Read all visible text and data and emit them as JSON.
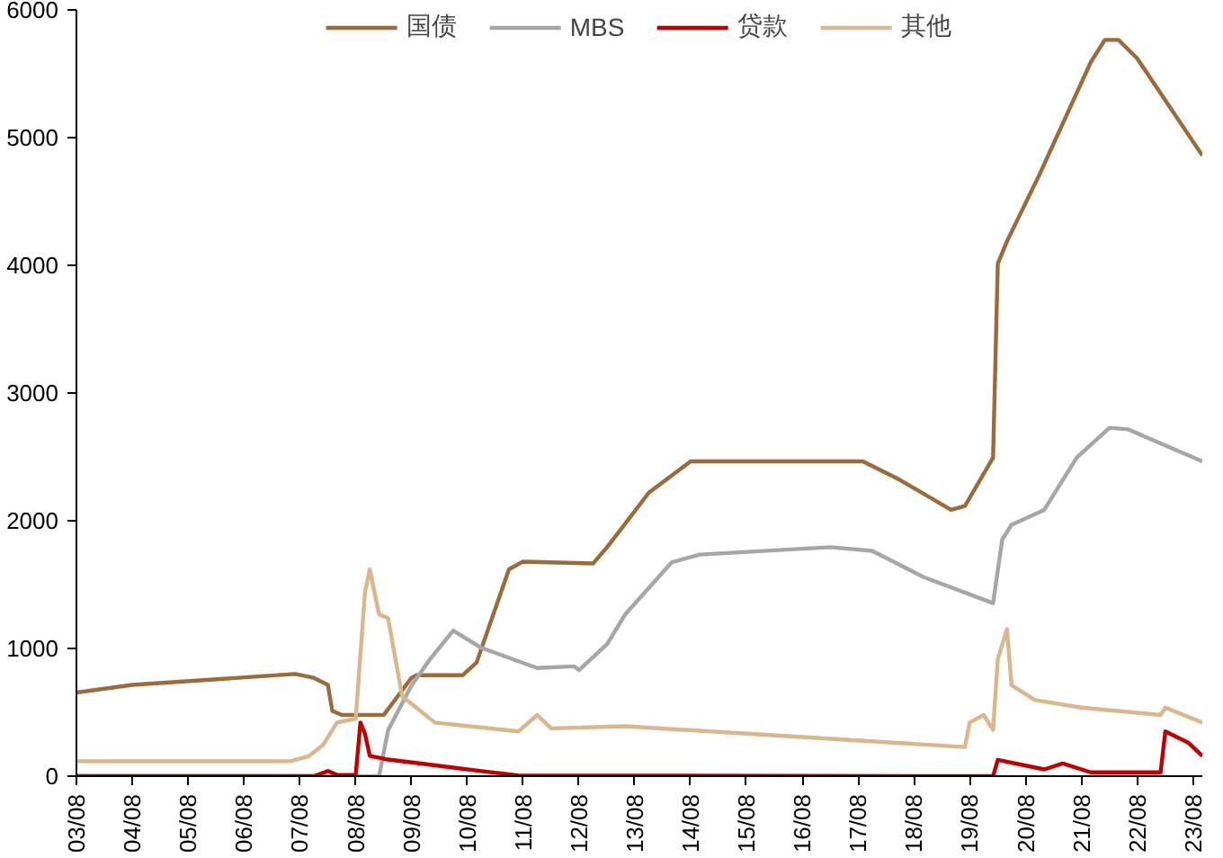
{
  "chart_data": {
    "type": "line",
    "xlim": [
      "2003-08",
      "2023-10"
    ],
    "xticks": [
      {
        "value": "2003-08",
        "label": "03/08"
      },
      {
        "value": "2004-08",
        "label": "04/08"
      },
      {
        "value": "2005-08",
        "label": "05/08"
      },
      {
        "value": "2006-08",
        "label": "06/08"
      },
      {
        "value": "2007-08",
        "label": "07/08"
      },
      {
        "value": "2008-08",
        "label": "08/08"
      },
      {
        "value": "2009-08",
        "label": "09/08"
      },
      {
        "value": "2010-08",
        "label": "10/08"
      },
      {
        "value": "2011-08",
        "label": "11/08"
      },
      {
        "value": "2012-08",
        "label": "12/08"
      },
      {
        "value": "2013-08",
        "label": "13/08"
      },
      {
        "value": "2014-08",
        "label": "14/08"
      },
      {
        "value": "2015-08",
        "label": "15/08"
      },
      {
        "value": "2016-08",
        "label": "16/08"
      },
      {
        "value": "2017-08",
        "label": "17/08"
      },
      {
        "value": "2018-08",
        "label": "18/08"
      },
      {
        "value": "2019-08",
        "label": "19/08"
      },
      {
        "value": "2020-08",
        "label": "20/08"
      },
      {
        "value": "2021-08",
        "label": "21/08"
      },
      {
        "value": "2022-08",
        "label": "22/08"
      },
      {
        "value": "2023-08",
        "label": "23/08"
      }
    ],
    "ylim": [
      0,
      6000
    ],
    "yticks": [
      0,
      1000,
      2000,
      3000,
      4000,
      5000,
      6000
    ],
    "grid": false,
    "legend": "top",
    "marker": "none",
    "line_style": "solid",
    "series": [
      {
        "name": "国债",
        "color": "#9c6b3c",
        "x": [
          "2003-08",
          "2004-08",
          "2007-07",
          "2007-11",
          "2008-02",
          "2008-03",
          "2008-05",
          "2009-02",
          "2009-08",
          "2009-09",
          "2010-07",
          "2010-10",
          "2011-05",
          "2011-08",
          "2012-11",
          "2013-02",
          "2013-06",
          "2013-11",
          "2014-08",
          "2017-09",
          "2018-05",
          "2019-04",
          "2019-07",
          "2020-01",
          "2020-02",
          "2020-04",
          "2020-11",
          "2021-10",
          "2022-01",
          "2022-04",
          "2022-08",
          "2023-10"
        ],
        "values": [
          655,
          715,
          800,
          770,
          715,
          510,
          480,
          480,
          770,
          790,
          790,
          890,
          1620,
          1680,
          1665,
          1793,
          1980,
          2220,
          2465,
          2465,
          2320,
          2085,
          2115,
          2494,
          4013,
          4188,
          4714,
          5590,
          5765,
          5765,
          5620,
          4860
        ]
      },
      {
        "name": "MBS",
        "color": "#a6a6a6",
        "x": [
          "2003-08",
          "2009-01",
          "2009-03",
          "2009-08",
          "2009-12",
          "2010-05",
          "2010-11",
          "2011-11",
          "2012-07",
          "2012-08",
          "2013-02",
          "2013-06",
          "2014-04",
          "2014-10",
          "2017-02",
          "2017-11",
          "2018-10",
          "2020-01",
          "2020-03",
          "2020-05",
          "2020-12",
          "2021-07",
          "2022-02",
          "2022-06",
          "2023-10"
        ],
        "values": [
          0,
          0,
          360,
          710,
          917,
          1140,
          1005,
          847,
          860,
          830,
          1034,
          1270,
          1676,
          1735,
          1793,
          1764,
          1560,
          1355,
          1852,
          1968,
          2085,
          2494,
          2728,
          2716,
          2465
        ]
      },
      {
        "name": "贷款",
        "color": "#c00000",
        "x": [
          "2003-08",
          "2007-11",
          "2008-02",
          "2008-04",
          "2008-08",
          "2008-09",
          "2008-10",
          "2008-11",
          "2009-03",
          "2009-12",
          "2010-11",
          "2011-07",
          "2020-01",
          "2020-02",
          "2020-12",
          "2021-04",
          "2021-10",
          "2023-01",
          "2023-02",
          "2023-07",
          "2023-10"
        ],
        "values": [
          0,
          0,
          40,
          10,
          10,
          420,
          330,
          160,
          130,
          90,
          40,
          5,
          0,
          128,
          53,
          99,
          30,
          30,
          350,
          263,
          158
        ]
      },
      {
        "name": "其他",
        "color": "#dab68c",
        "x": [
          "2003-08",
          "2007-06",
          "2007-10",
          "2008-01",
          "2008-04",
          "2008-08",
          "2008-10",
          "2008-11",
          "2009-01",
          "2009-03",
          "2009-06",
          "2010-01",
          "2011-07",
          "2011-11",
          "2012-02",
          "2013-06",
          "2019-07",
          "2019-08",
          "2019-11",
          "2020-01",
          "2020-02",
          "2020-04",
          "2020-05",
          "2020-10",
          "2021-08",
          "2023-01",
          "2023-02",
          "2023-10"
        ],
        "values": [
          117,
          117,
          158,
          245,
          420,
          450,
          1443,
          1618,
          1268,
          1238,
          625,
          420,
          350,
          479,
          374,
          391,
          228,
          420,
          479,
          362,
          917,
          1150,
          713,
          596,
          537,
          479,
          537,
          420
        ]
      }
    ]
  }
}
